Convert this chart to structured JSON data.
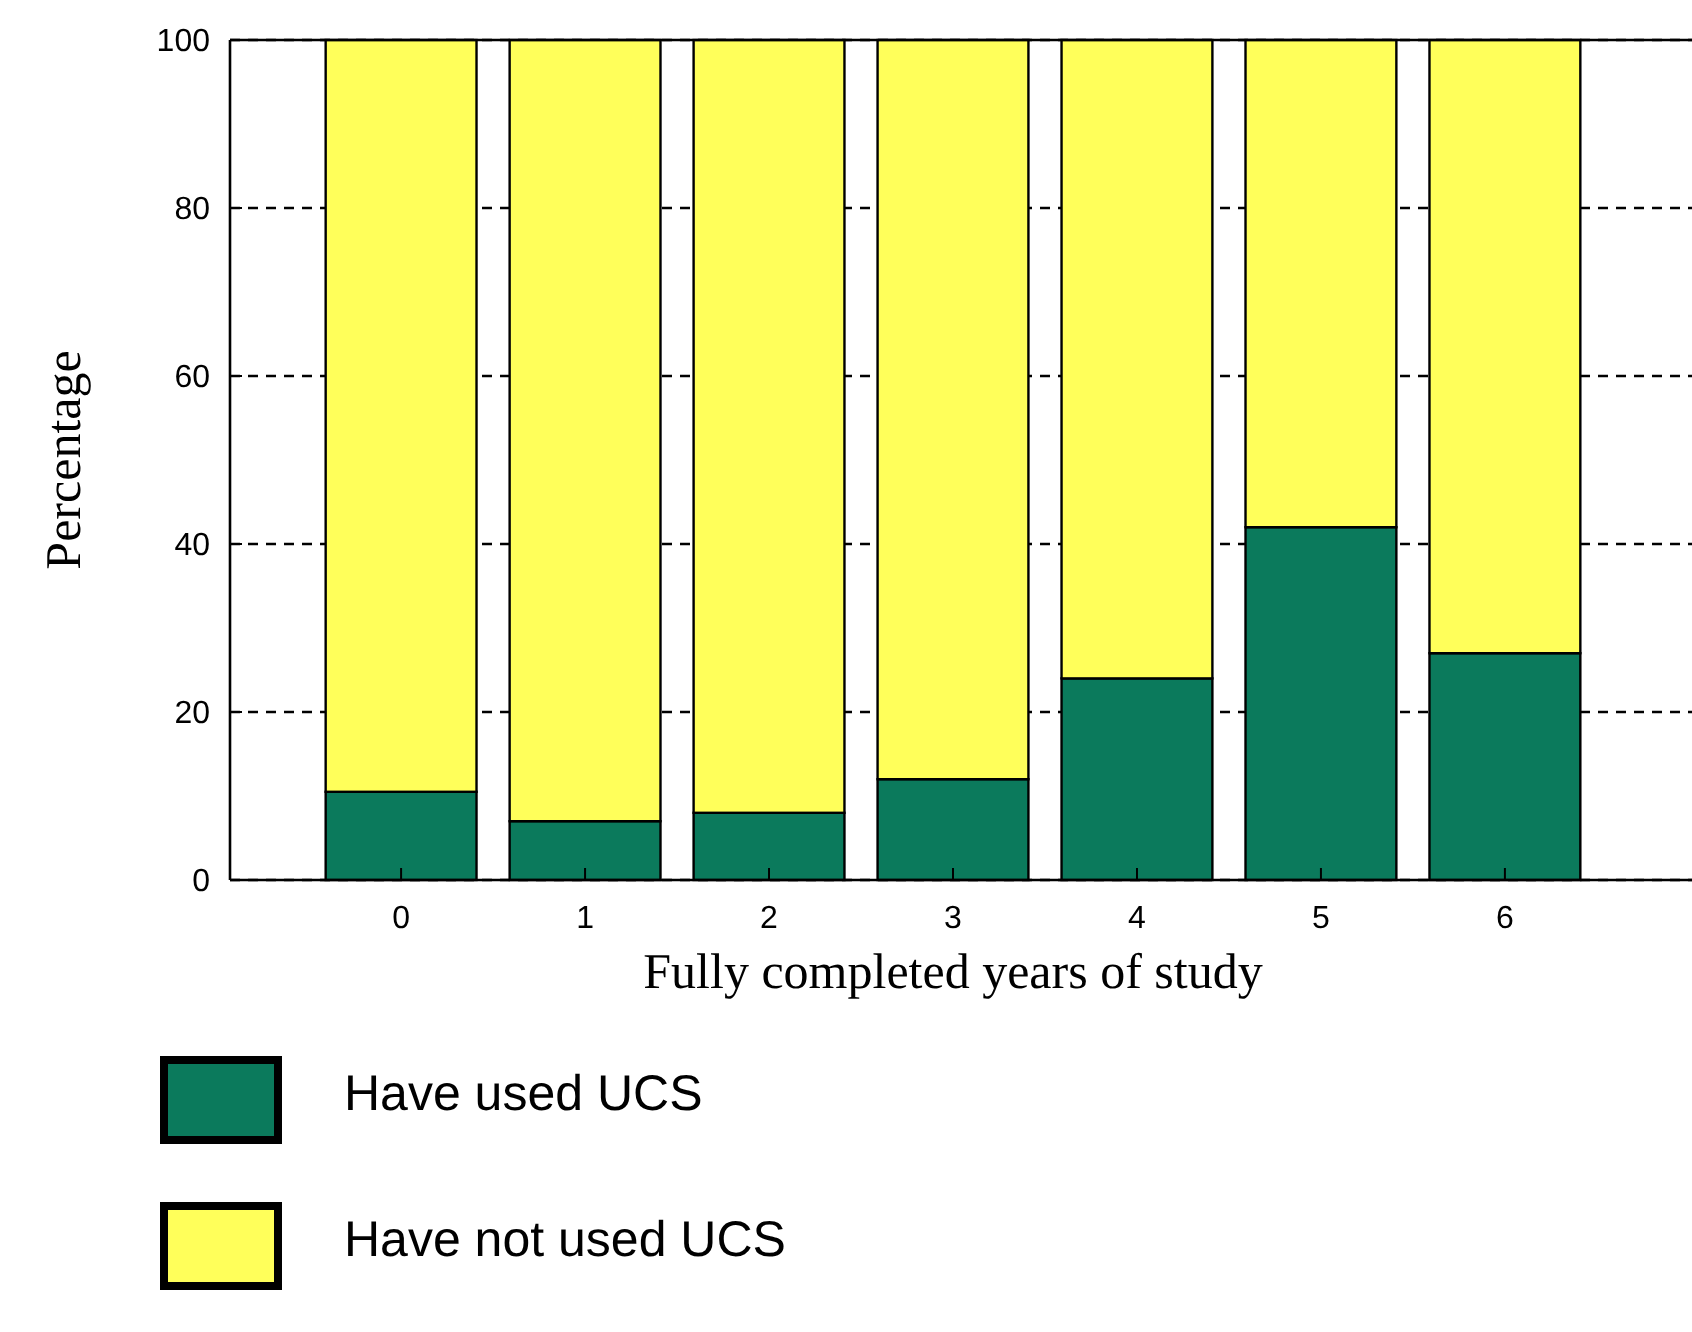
{
  "chart_data": {
    "type": "bar",
    "stacked": true,
    "xlabel": "Fully completed years of study",
    "ylabel": "Percentage",
    "categories": [
      "0",
      "1",
      "2",
      "3",
      "4",
      "5",
      "6"
    ],
    "series": [
      {
        "name": "Have used UCS",
        "color": "#0b7a5c",
        "values": [
          10.5,
          7,
          8,
          12,
          24,
          42,
          27
        ]
      },
      {
        "name": "Have not used UCS",
        "color": "#ffff5a",
        "values": [
          89.5,
          93,
          92,
          88,
          76,
          58,
          73
        ]
      }
    ],
    "ylim": [
      0,
      100
    ],
    "yticks": [
      0,
      20,
      40,
      60,
      80,
      100
    ],
    "grid": "y",
    "legend": "bottom"
  }
}
